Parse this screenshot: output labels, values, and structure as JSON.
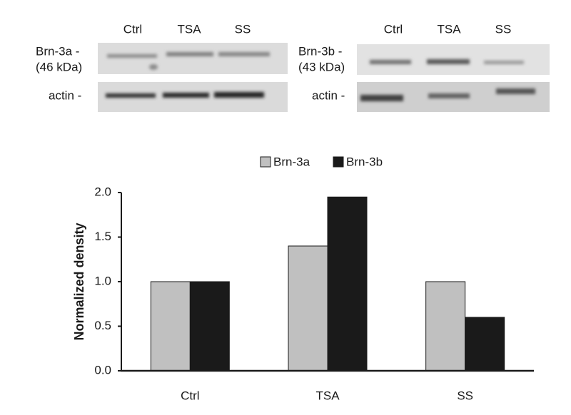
{
  "blots": [
    {
      "lanes": [
        "Ctrl",
        "TSA",
        "SS"
      ],
      "protein": "Brn-3a -",
      "size": "(46 kDa)",
      "control": "actin -"
    },
    {
      "lanes": [
        "Ctrl",
        "TSA",
        "SS"
      ],
      "protein": "Brn-3b -",
      "size": "(43 kDa)",
      "control": "actin -"
    }
  ],
  "chart_data": {
    "type": "bar",
    "y_label": "Normalized density",
    "categories": [
      "Ctrl",
      "TSA",
      "SS"
    ],
    "series": [
      {
        "name": "Brn-3a",
        "color": "#c0c0c0",
        "values": [
          1.0,
          1.4,
          1.0
        ]
      },
      {
        "name": "Brn-3b",
        "color": "#1a1a1a",
        "values": [
          1.0,
          1.95,
          0.6
        ]
      }
    ],
    "ylim": [
      0,
      2
    ],
    "yticks": [
      {
        "value": 0,
        "label": "0.0"
      },
      0.5,
      {
        "value": 1,
        "label": "1.0"
      },
      1.5,
      {
        "value": 2,
        "label": "2.0"
      }
    ],
    "grid": false
  }
}
